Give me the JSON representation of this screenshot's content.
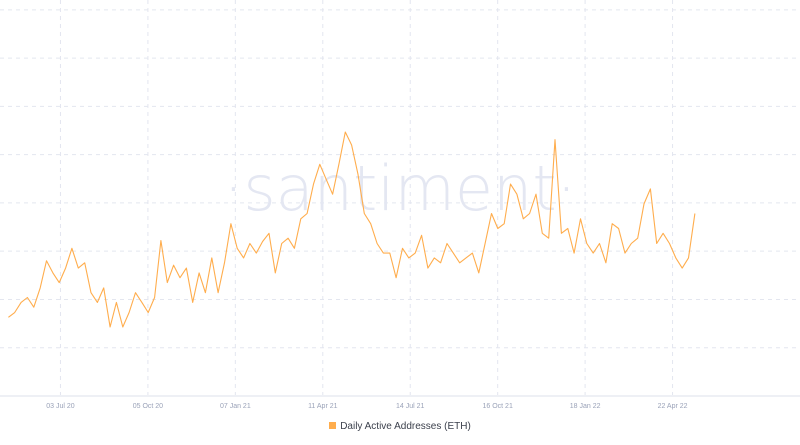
{
  "watermark": "·santiment·",
  "legend": {
    "label": "Daily Active Addresses (ETH)"
  },
  "colors": {
    "series": "#ffad4d",
    "grid": "#e3e6ef",
    "axis_text": "#9aa2b8",
    "watermark": "#e4e7f2"
  },
  "chart_data": {
    "type": "line",
    "title": "",
    "xlabel": "",
    "ylabel": "",
    "grid": true,
    "legend_position": "bottom-center",
    "x_ticks": [
      {
        "label": "03 Jul 20",
        "day": 0
      },
      {
        "label": "05 Oct 20",
        "day": 94
      },
      {
        "label": "07 Jan 21",
        "day": 188
      },
      {
        "label": "11 Apr 21",
        "day": 282
      },
      {
        "label": "14 Jul 21",
        "day": 376
      },
      {
        "label": "16 Oct 21",
        "day": 470
      },
      {
        "label": "18 Jan 22",
        "day": 564
      },
      {
        "label": "22 Apr 22",
        "day": 658
      }
    ],
    "x_range_days": [
      -65,
      795
    ],
    "series_x_range_days": [
      -56,
      682
    ],
    "ylim": [
      0,
      8.1
    ],
    "y_grid_step": 1,
    "y_units": "relative (no y-axis labels shown)",
    "series": [
      {
        "name": "Daily Active Addresses (ETH)",
        "values": [
          1.63,
          1.73,
          1.94,
          2.04,
          1.84,
          2.24,
          2.8,
          2.55,
          2.35,
          2.65,
          3.06,
          2.65,
          2.76,
          2.14,
          1.94,
          2.24,
          1.43,
          1.94,
          1.43,
          1.73,
          2.14,
          1.94,
          1.73,
          2.04,
          3.22,
          2.35,
          2.71,
          2.45,
          2.65,
          1.94,
          2.55,
          2.14,
          2.86,
          2.14,
          2.76,
          3.57,
          3.06,
          2.86,
          3.16,
          2.96,
          3.2,
          3.37,
          2.55,
          3.16,
          3.27,
          3.06,
          3.67,
          3.78,
          4.39,
          4.8,
          4.49,
          4.18,
          4.8,
          5.47,
          5.2,
          4.59,
          3.78,
          3.57,
          3.16,
          2.96,
          2.96,
          2.45,
          3.06,
          2.86,
          2.96,
          3.33,
          2.65,
          2.86,
          2.76,
          3.16,
          2.96,
          2.76,
          2.86,
          2.96,
          2.55,
          3.16,
          3.78,
          3.47,
          3.57,
          4.39,
          4.18,
          3.67,
          3.78,
          4.18,
          3.37,
          3.27,
          5.31,
          3.37,
          3.47,
          2.96,
          3.67,
          3.16,
          2.96,
          3.16,
          2.76,
          3.57,
          3.47,
          2.96,
          3.16,
          3.27,
          3.98,
          4.29,
          3.16,
          3.37,
          3.16,
          2.86,
          2.65,
          2.86,
          3.78
        ]
      }
    ]
  }
}
